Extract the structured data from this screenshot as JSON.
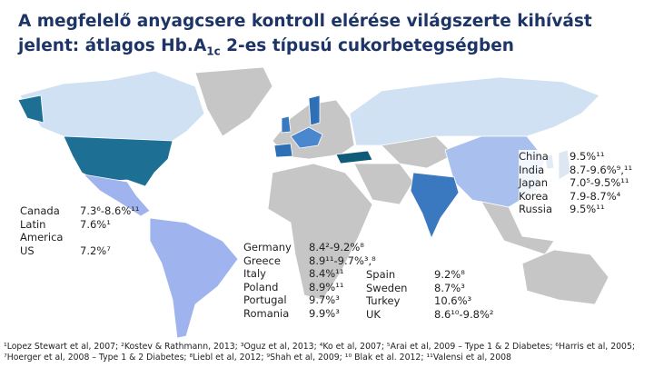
{
  "header": {
    "title": {
      "line1": "A megfelelő anyagcsere kontroll elérése világszerte kihívást",
      "line2_start": "jelent: átlagos Hb.A",
      "subscript": "1c",
      "line2_end": " 2-es típusú cukorbetegségben"
    }
  },
  "groups": [
    {
      "rows": [
        {
          "country": "Canada",
          "value": "7.3⁶-8.6%¹¹"
        },
        {
          "country": "Latin America",
          "value": "7.6%¹"
        },
        {
          "country": "US",
          "value": "7.2%⁷"
        }
      ]
    },
    {
      "rows": [
        {
          "country": "Germany",
          "value": "8.4²-9.2%⁸"
        },
        {
          "country": "Greece",
          "value": "8.9¹¹-9.7%³,⁸"
        },
        {
          "country": "Italy",
          "value": "8.4%¹¹"
        },
        {
          "country": "Poland",
          "value": "8.9%¹¹"
        },
        {
          "country": "Portugal",
          "value": "9.7%³"
        },
        {
          "country": "Romania",
          "value": "9.9%³"
        }
      ]
    },
    {
      "rows": [
        {
          "country": "Spain",
          "value": "9.2%⁸"
        },
        {
          "country": "Sweden",
          "value": "8.7%³"
        },
        {
          "country": "Turkey",
          "value": "10.6%³"
        },
        {
          "country": "UK",
          "value": "8.6¹⁰-9.8%²"
        }
      ]
    },
    {
      "rows": [
        {
          "country": "China",
          "value": "9.5%¹¹"
        },
        {
          "country": "India",
          "value": "8.7-9.6%⁹,¹¹"
        },
        {
          "country": "Japan",
          "value": "7.0⁵-9.5%¹¹"
        },
        {
          "country": "Korea",
          "value": "7.9-8.7%⁴"
        },
        {
          "country": "Russia",
          "value": "9.5%¹¹"
        }
      ]
    }
  ],
  "footnote": "¹Lopez Stewart et al, 2007; ²Kostev & Rathmann, 2013; ³Oguz et al, 2013; ⁴Ko et al, 2007; ⁵Arai et al, 2009 – Type 1 & 2 Diabetes; ⁶Harris et al, 2005; ⁷Hoerger et al, 2008 – Type 1 & 2 Diabetes; ⁸Liebl et al, 2012; ⁹Shah et al, 2009; ¹⁰ Blak et al. 2012; ¹¹Valensi et al, 2008"
}
